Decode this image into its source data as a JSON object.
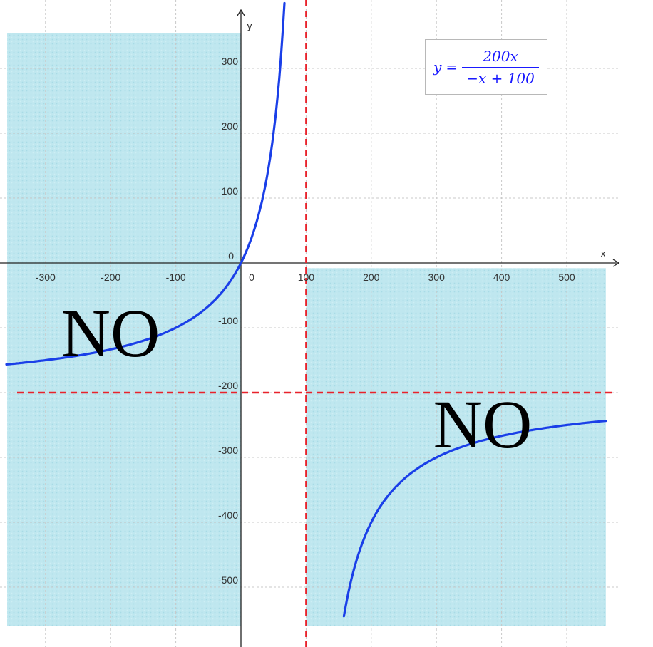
{
  "chart_data": {
    "type": "line",
    "title": "",
    "xlabel": "x",
    "ylabel": "y",
    "xlim": [
      -330,
      560
    ],
    "ylim": [
      -580,
      385
    ],
    "x_ticks": [
      -300,
      -200,
      -100,
      100,
      200,
      300,
      400,
      500
    ],
    "y_ticks": [
      -500,
      -400,
      -300,
      -200,
      -100,
      100,
      200,
      300
    ],
    "origin_label": "0",
    "y_zero_label": "0",
    "grid": true,
    "equation": {
      "lhs": "y",
      "eq": "=",
      "numerator": "200x",
      "denominator": "−x + 100"
    },
    "function": {
      "expression": "200*x/(100-x)",
      "color": "#1a3fe8"
    },
    "series": [
      {
        "x": [
          -360,
          -300,
          -200,
          -150,
          -100,
          -50,
          -20,
          0,
          20,
          40,
          50,
          60,
          66.7
        ],
        "y": [
          -156.5,
          -150,
          -133.3,
          -120,
          -100,
          -66.7,
          -33.3,
          0,
          50,
          133.3,
          200,
          300,
          400
        ]
      },
      {
        "x": [
          158,
          170,
          200,
          250,
          300,
          400,
          500,
          560
        ],
        "y": [
          -544.8,
          -485.7,
          -400,
          -333.3,
          -300,
          -266.7,
          -250,
          -243.5
        ]
      }
    ],
    "asymptotes": [
      {
        "orientation": "vertical",
        "value": 100,
        "color": "#e8222b",
        "style": "dashed"
      },
      {
        "orientation": "horizontal",
        "value": -200,
        "color": "#e8222b",
        "style": "dashed"
      }
    ],
    "shaded_regions": [
      {
        "x": [
          -360,
          0
        ],
        "y": [
          -580,
          385
        ],
        "color": "#b9e6ee",
        "label": "NO"
      },
      {
        "x": [
          100,
          560
        ],
        "y": [
          -580,
          -8
        ],
        "color": "#b9e6ee",
        "label": "NO"
      }
    ]
  }
}
